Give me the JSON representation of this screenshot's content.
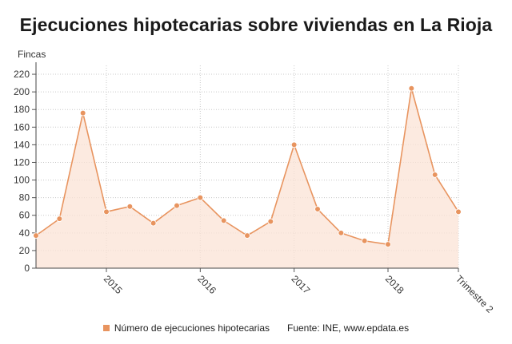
{
  "title": "Ejecuciones hipotecarias sobre viviendas en La Rioja",
  "source": "Fuente: INE, www.epdata.es",
  "colors": {
    "line": "#e8945f",
    "area": "#fbe3d6",
    "marker": "#e8945f"
  },
  "chart_data": {
    "type": "area",
    "title": "Ejecuciones hipotecarias sobre viviendas en La Rioja",
    "ylabel": "Fincas",
    "xlabel": "",
    "ylim": [
      0,
      230
    ],
    "yticks": [
      0,
      20,
      40,
      60,
      80,
      100,
      120,
      140,
      160,
      180,
      200,
      220
    ],
    "x_tick_labels": [
      "2015",
      "2016",
      "2017",
      "2018",
      "Trimestre 2"
    ],
    "grid": "dotted",
    "legend": "bottom",
    "series": [
      {
        "name": "Número de ejecuciones hipotecarias",
        "values": [
          37,
          56,
          176,
          64,
          70,
          51,
          71,
          80,
          54,
          37,
          53,
          140,
          67,
          40,
          31,
          27,
          204,
          106,
          64
        ]
      }
    ]
  }
}
